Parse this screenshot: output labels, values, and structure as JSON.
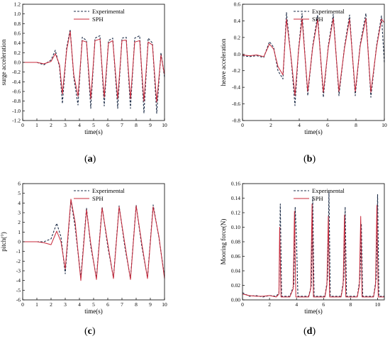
{
  "colors": {
    "experimental": "#1f2f4a",
    "sph": "#c8283a",
    "axis": "#000000"
  },
  "chart_data": [
    {
      "id": "a",
      "type": "line",
      "panel_label": "a",
      "xlabel": "time(s)",
      "ylabel": "surge acceleration",
      "xlim": [
        0,
        10
      ],
      "ylim": [
        -1.2,
        1.2
      ],
      "xticks": [
        "0",
        "1",
        "2",
        "3",
        "4",
        "5",
        "6",
        "7",
        "8",
        "9",
        "10"
      ],
      "yticks": [
        "-1.2",
        "-1.0",
        "-0.8",
        "-0.6",
        "-0.4",
        "-0.2",
        "0.0",
        "0.2",
        "0.4",
        "0.6",
        "0.8",
        "1.0",
        "1.2"
      ],
      "legend_position": "top-center",
      "grid": false,
      "series": [
        {
          "name": "Experimental",
          "style": "dashed",
          "x": [
            0,
            0.5,
            1.0,
            1.5,
            2.0,
            2.3,
            2.6,
            2.8,
            3.1,
            3.35,
            3.6,
            3.9,
            4.2,
            4.5,
            4.8,
            5.1,
            5.45,
            5.75,
            6.05,
            6.35,
            6.7,
            7.0,
            7.3,
            7.6,
            7.9,
            8.25,
            8.55,
            8.85,
            9.15,
            9.45,
            9.75,
            10.0
          ],
          "y": [
            0.0,
            0.0,
            0.0,
            -0.05,
            0.05,
            0.25,
            -0.1,
            -0.85,
            0.3,
            0.68,
            -0.3,
            -0.88,
            0.52,
            0.45,
            -0.95,
            0.5,
            0.55,
            -0.9,
            0.45,
            0.5,
            -0.95,
            0.5,
            0.52,
            -0.95,
            0.5,
            0.55,
            -1.05,
            0.5,
            0.4,
            -1.05,
            0.2,
            -0.3
          ]
        },
        {
          "name": "SPH",
          "style": "solid",
          "x": [
            0,
            0.5,
            1.0,
            1.5,
            2.0,
            2.3,
            2.6,
            2.8,
            3.1,
            3.35,
            3.6,
            3.9,
            4.2,
            4.5,
            4.8,
            5.1,
            5.45,
            5.75,
            6.05,
            6.35,
            6.7,
            7.0,
            7.3,
            7.6,
            7.9,
            8.25,
            8.55,
            8.85,
            9.15,
            9.45,
            9.75,
            10.0
          ],
          "y": [
            0.0,
            0.0,
            0.0,
            -0.03,
            0.02,
            0.18,
            -0.05,
            -0.65,
            0.25,
            0.64,
            -0.25,
            -0.7,
            0.45,
            0.42,
            -0.75,
            0.45,
            0.48,
            -0.72,
            0.4,
            0.45,
            -0.75,
            0.45,
            0.46,
            -0.75,
            0.42,
            0.45,
            -0.8,
            0.42,
            0.36,
            -0.82,
            0.15,
            -0.25
          ]
        }
      ]
    },
    {
      "id": "b",
      "type": "line",
      "panel_label": "b",
      "xlabel": "time(s)",
      "ylabel": "heave acceleration",
      "xlim": [
        0,
        10
      ],
      "ylim": [
        -0.8,
        0.6
      ],
      "xticks": [
        "0",
        "2",
        "4",
        "6",
        "8",
        "10"
      ],
      "yticks": [
        "-0.8",
        "-0.6",
        "-0.4",
        "-0.2",
        "0.0",
        "0.2",
        "0.4",
        "0.6"
      ],
      "legend_position": "top-center",
      "grid": false,
      "series": [
        {
          "name": "Experimental",
          "style": "dashed",
          "x": [
            0,
            0.5,
            1.0,
            1.5,
            1.9,
            2.2,
            2.5,
            2.85,
            3.1,
            3.45,
            3.7,
            3.95,
            4.2,
            4.6,
            4.95,
            5.3,
            5.7,
            6.05,
            6.4,
            6.8,
            7.2,
            7.55,
            7.95,
            8.3,
            8.7,
            9.05,
            9.45,
            9.8,
            10.0
          ],
          "y": [
            -0.02,
            -0.03,
            -0.02,
            -0.04,
            0.15,
            0.08,
            -0.2,
            -0.3,
            0.5,
            -0.1,
            -0.62,
            0.05,
            0.49,
            -0.5,
            0.1,
            0.47,
            -0.52,
            0.1,
            0.48,
            -0.5,
            0.1,
            0.47,
            -0.5,
            0.12,
            0.49,
            -0.52,
            0.1,
            0.46,
            -0.1
          ]
        },
        {
          "name": "SPH",
          "style": "solid",
          "x": [
            0,
            0.5,
            1.0,
            1.5,
            1.9,
            2.2,
            2.5,
            2.85,
            3.1,
            3.45,
            3.7,
            3.95,
            4.2,
            4.6,
            4.95,
            5.3,
            5.7,
            6.05,
            6.4,
            6.8,
            7.2,
            7.55,
            7.95,
            8.3,
            8.7,
            9.05,
            9.45,
            9.8,
            10.0
          ],
          "y": [
            -0.01,
            -0.02,
            -0.01,
            -0.03,
            0.12,
            0.06,
            -0.15,
            -0.25,
            0.42,
            -0.08,
            -0.5,
            0.04,
            0.42,
            -0.45,
            0.08,
            0.42,
            -0.46,
            0.08,
            0.43,
            -0.45,
            0.08,
            0.42,
            -0.45,
            0.1,
            0.43,
            -0.46,
            0.08,
            0.42,
            0.38
          ]
        }
      ]
    },
    {
      "id": "c",
      "type": "line",
      "panel_label": "c",
      "xlabel": "time(s)",
      "ylabel": "pitch(°)",
      "xlim": [
        0,
        10
      ],
      "ylim": [
        -6,
        6
      ],
      "xticks": [
        "0",
        "1",
        "2",
        "3",
        "4",
        "5",
        "6",
        "7",
        "8",
        "9",
        "10"
      ],
      "yticks": [
        "-6",
        "-5",
        "-4",
        "-3",
        "-2",
        "-1",
        "0",
        "1",
        "2",
        "3",
        "4",
        "5",
        "6"
      ],
      "legend_position": "top-center",
      "grid": false,
      "series": [
        {
          "name": "Experimental",
          "style": "dashed",
          "x": [
            0,
            0.5,
            1.0,
            1.5,
            2.0,
            2.4,
            2.7,
            3.0,
            3.4,
            3.7,
            4.1,
            4.5,
            4.8,
            5.2,
            5.6,
            6.0,
            6.4,
            6.8,
            7.2,
            7.6,
            8.0,
            8.4,
            8.8,
            9.2,
            9.6,
            10.0
          ],
          "y": [
            0.0,
            0.0,
            0.0,
            0.0,
            0.3,
            1.9,
            0.5,
            -3.3,
            4.3,
            1.5,
            -3.7,
            3.5,
            -0.5,
            -3.7,
            3.6,
            -0.5,
            -3.7,
            3.7,
            -0.5,
            -3.8,
            3.8,
            -0.5,
            -3.7,
            3.8,
            0.5,
            -3.6
          ]
        },
        {
          "name": "SPH",
          "style": "solid",
          "x": [
            0,
            0.5,
            1.0,
            1.5,
            2.0,
            2.4,
            2.7,
            3.0,
            3.4,
            3.7,
            4.1,
            4.5,
            4.8,
            5.2,
            5.6,
            6.0,
            6.4,
            6.8,
            7.2,
            7.6,
            8.0,
            8.4,
            8.8,
            9.2,
            9.6,
            10.0
          ],
          "y": [
            0.0,
            0.0,
            0.0,
            -0.1,
            -0.3,
            1.1,
            0.0,
            -2.8,
            4.4,
            2.0,
            -4.0,
            3.3,
            -0.2,
            -3.9,
            3.5,
            -0.2,
            -3.8,
            3.6,
            -0.2,
            -3.9,
            3.7,
            -0.2,
            -3.8,
            3.6,
            0.6,
            -3.8
          ]
        }
      ]
    },
    {
      "id": "d",
      "type": "line",
      "panel_label": "d",
      "xlabel": "time(s)",
      "ylabel": "Mooring force(N)",
      "xlim": [
        0,
        10.5
      ],
      "ylim": [
        0,
        0.16
      ],
      "xticks": [
        "0",
        "2",
        "4",
        "6",
        "8",
        "10"
      ],
      "yticks": [
        "0.00",
        "0.02",
        "0.04",
        "0.06",
        "0.08",
        "0.10",
        "0.12",
        "0.14",
        "0.16"
      ],
      "legend_position": "top-center",
      "grid": false,
      "series": [
        {
          "name": "Experimental",
          "style": "dashed",
          "x": [
            0,
            0.5,
            1.0,
            1.5,
            2.0,
            2.5,
            2.7,
            2.8,
            2.9,
            3.5,
            3.8,
            3.9,
            4.0,
            4.1,
            4.2,
            4.9,
            5.1,
            5.2,
            5.3,
            6.1,
            6.3,
            6.4,
            6.5,
            7.3,
            7.5,
            7.6,
            7.7,
            8.5,
            8.7,
            8.8,
            8.9,
            9.7,
            9.9,
            10.0,
            10.1,
            10.5
          ],
          "y": [
            0.01,
            0.005,
            0.006,
            0.004,
            0.006,
            0.005,
            0.01,
            0.132,
            0.005,
            0.005,
            0.02,
            0.128,
            0.08,
            0.005,
            0.005,
            0.005,
            0.02,
            0.142,
            0.005,
            0.005,
            0.03,
            0.149,
            0.005,
            0.005,
            0.03,
            0.128,
            0.005,
            0.005,
            0.03,
            0.105,
            0.005,
            0.005,
            0.03,
            0.145,
            0.005,
            0.005
          ]
        },
        {
          "name": "SPH",
          "style": "solid",
          "x": [
            0,
            0.5,
            1.0,
            1.5,
            2.0,
            2.5,
            2.7,
            2.75,
            2.85,
            3.5,
            3.75,
            3.85,
            3.95,
            4.1,
            4.9,
            5.05,
            5.15,
            5.25,
            6.1,
            6.25,
            6.35,
            6.45,
            7.3,
            7.45,
            7.55,
            7.65,
            8.5,
            8.65,
            8.75,
            8.85,
            9.7,
            9.85,
            9.95,
            10.05,
            10.5
          ],
          "y": [
            0.008,
            0.006,
            0.005,
            0.005,
            0.006,
            0.004,
            0.008,
            0.1,
            0.004,
            0.004,
            0.015,
            0.122,
            0.004,
            0.004,
            0.004,
            0.015,
            0.132,
            0.004,
            0.004,
            0.02,
            0.115,
            0.004,
            0.004,
            0.02,
            0.117,
            0.004,
            0.004,
            0.02,
            0.115,
            0.004,
            0.004,
            0.02,
            0.13,
            0.004,
            0.004
          ]
        }
      ]
    }
  ]
}
